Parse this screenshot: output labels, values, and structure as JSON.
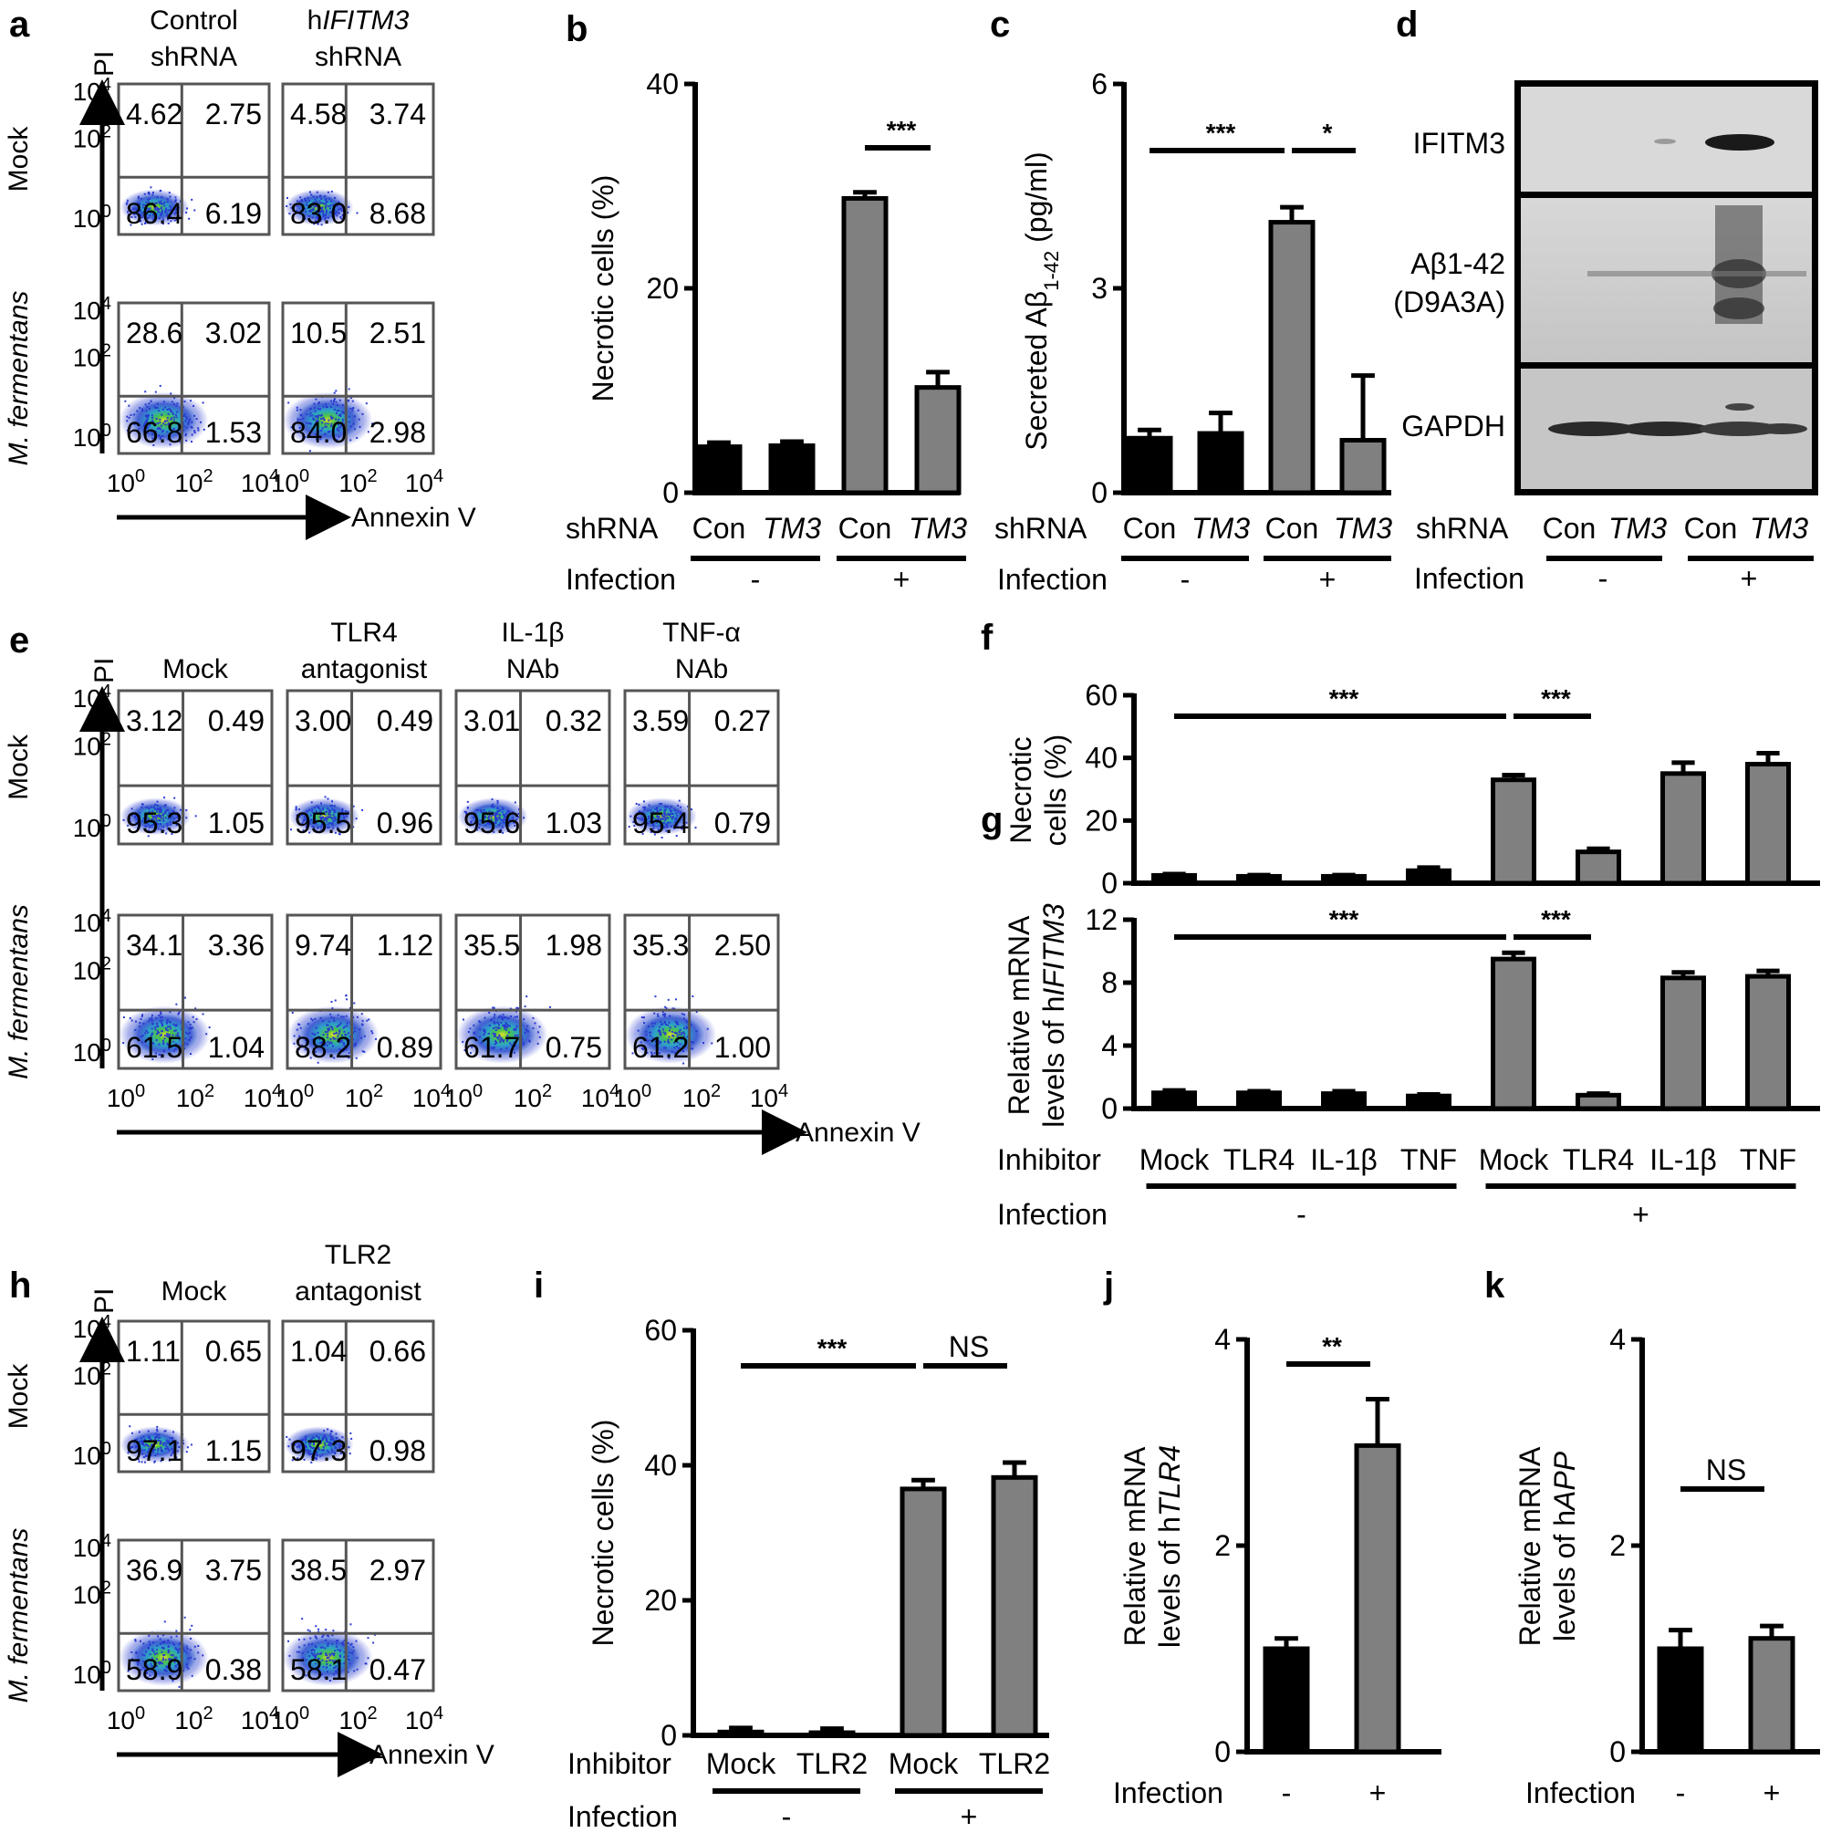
{
  "figure": {
    "panel_labels": [
      "a",
      "b",
      "c",
      "d",
      "e",
      "f",
      "g",
      "h",
      "i",
      "j",
      "k"
    ],
    "pi_label": "PI",
    "annexin_label": "Annexin V",
    "mock_label": "Mock",
    "mfer_label": "M. fermentans",
    "ticks": {
      "low": "10",
      "low_exp": "0",
      "mid": "10",
      "mid_exp": "2",
      "high": "10",
      "high_exp": "4"
    }
  },
  "panel_a": {
    "col_titles": [
      [
        "Control",
        "shRNA"
      ],
      [
        "hIFITM3",
        "shRNA"
      ]
    ],
    "col_title_italic_part": "IFITM3",
    "plots": [
      [
        "4.62",
        "2.75",
        "86.4",
        "6.19"
      ],
      [
        "4.58",
        "3.74",
        "83.0",
        "8.68"
      ],
      [
        "28.6",
        "3.02",
        "66.8",
        "1.53"
      ],
      [
        "10.5",
        "2.51",
        "84.0",
        "2.98"
      ]
    ]
  },
  "panel_e": {
    "col_titles": [
      [
        "Mock"
      ],
      [
        "TLR4",
        "antagonist"
      ],
      [
        "IL-1β",
        "NAb"
      ],
      [
        "TNF-α",
        "NAb"
      ]
    ],
    "plots": [
      [
        "3.12",
        "0.49",
        "95.3",
        "1.05"
      ],
      [
        "3.00",
        "0.49",
        "95.5",
        "0.96"
      ],
      [
        "3.01",
        "0.32",
        "95.6",
        "1.03"
      ],
      [
        "3.59",
        "0.27",
        "95.4",
        "0.79"
      ],
      [
        "34.1",
        "3.36",
        "61.5",
        "1.04"
      ],
      [
        "9.74",
        "1.12",
        "88.2",
        "0.89"
      ],
      [
        "35.5",
        "1.98",
        "61.7",
        "0.75"
      ],
      [
        "35.3",
        "2.50",
        "61.2",
        "1.00"
      ]
    ]
  },
  "panel_h": {
    "col_titles": [
      [
        "Mock"
      ],
      [
        "TLR2",
        "antagonist"
      ]
    ],
    "plots": [
      [
        "1.11",
        "0.65",
        "97.1",
        "1.15"
      ],
      [
        "1.04",
        "0.66",
        "97.3",
        "0.98"
      ],
      [
        "36.9",
        "3.75",
        "58.9",
        "0.38"
      ],
      [
        "38.5",
        "2.97",
        "58.1",
        "0.47"
      ]
    ]
  },
  "panel_d": {
    "bands": [
      "IFITM3",
      "Aβ1-42",
      "(D9A3A)",
      "GAPDH"
    ],
    "shrna_label": "shRNA",
    "lanes": [
      "Con",
      "TM3",
      "Con",
      "TM3"
    ],
    "infection_label": "Infection",
    "infection_groups": [
      "-",
      "+"
    ]
  },
  "chart_data": [
    {
      "id": "b",
      "type": "bar",
      "ylabel": "Necrotic cells (%)",
      "ylim": [
        0,
        40
      ],
      "yticks": [
        "0",
        "20",
        "40"
      ],
      "row_label": "shRNA",
      "categories": [
        "Con",
        "TM3",
        "Con",
        "TM3"
      ],
      "values": [
        4.5,
        4.6,
        28.8,
        10.3
      ],
      "errors": [
        0.4,
        0.4,
        0.6,
        1.5
      ],
      "colors": [
        "#000000",
        "#000000",
        "#808080",
        "#808080"
      ],
      "infection_label": "Infection",
      "infection_groups": [
        "-",
        "+"
      ],
      "significance": [
        {
          "text": "***",
          "from": 2,
          "to": 3
        }
      ]
    },
    {
      "id": "c",
      "type": "bar",
      "ylabel_main": "Secreted Aβ",
      "ylabel_sub": "1-42",
      "ylabel_unit": " (pg/ml)",
      "ylim": [
        0,
        6
      ],
      "yticks": [
        "0",
        "3",
        "6"
      ],
      "row_label": "shRNA",
      "categories": [
        "Con",
        "TM3",
        "Con",
        "TM3"
      ],
      "values": [
        0.8,
        0.87,
        3.97,
        0.77
      ],
      "errors": [
        0.12,
        0.3,
        0.22,
        0.95
      ],
      "colors": [
        "#000000",
        "#000000",
        "#808080",
        "#808080"
      ],
      "infection_label": "Infection",
      "infection_groups": [
        "-",
        "+"
      ],
      "significance": [
        {
          "text": "***",
          "from": 0,
          "to": 2
        },
        {
          "text": "*",
          "from": 2,
          "to": 3
        }
      ]
    },
    {
      "id": "f",
      "type": "bar",
      "ylabel": [
        "Necrotic",
        "cells (%)"
      ],
      "ylim": [
        0,
        60
      ],
      "yticks": [
        "0",
        "20",
        "40",
        "60"
      ],
      "categories": [
        "Mock",
        "TLR4",
        "IL-1β",
        "TNF",
        "Mock",
        "TLR4",
        "IL-1β",
        "TNF"
      ],
      "values": [
        2.5,
        2.2,
        2.2,
        4.0,
        33.0,
        10.0,
        35.0,
        38.0
      ],
      "errors": [
        0.4,
        0.4,
        0.4,
        1.0,
        1.5,
        1.0,
        3.5,
        3.5
      ],
      "colors": [
        "#000000",
        "#000000",
        "#000000",
        "#000000",
        "#808080",
        "#808080",
        "#808080",
        "#808080"
      ],
      "significance": [
        {
          "text": "***",
          "from": 0,
          "to": 4
        },
        {
          "text": "***",
          "from": 4,
          "to": 5
        }
      ]
    },
    {
      "id": "g",
      "type": "bar",
      "ylabel": [
        "Relative mRNA",
        "levels of h",
        "IFITM3"
      ],
      "ylim": [
        0,
        12
      ],
      "yticks": [
        "0",
        "4",
        "8",
        "12"
      ],
      "row_label": "Inhibitor",
      "categories": [
        "Mock",
        "TLR4",
        "IL-1β",
        "TNF",
        "Mock",
        "TLR4",
        "IL-1β",
        "TNF"
      ],
      "values": [
        1.0,
        1.0,
        0.95,
        0.8,
        9.5,
        0.85,
        8.3,
        8.4
      ],
      "errors": [
        0.15,
        0.1,
        0.15,
        0.1,
        0.4,
        0.1,
        0.35,
        0.35
      ],
      "colors": [
        "#000000",
        "#000000",
        "#000000",
        "#000000",
        "#808080",
        "#808080",
        "#808080",
        "#808080"
      ],
      "infection_label": "Infection",
      "infection_groups": [
        "-",
        "+"
      ],
      "significance": [
        {
          "text": "***",
          "from": 0,
          "to": 4
        },
        {
          "text": "***",
          "from": 4,
          "to": 5
        }
      ]
    },
    {
      "id": "i",
      "type": "bar",
      "ylabel": "Necrotic cells (%)",
      "ylim": [
        0,
        60
      ],
      "yticks": [
        "0",
        "20",
        "40",
        "60"
      ],
      "row_label": "Inhibitor",
      "categories": [
        "Mock",
        "TLR2",
        "Mock",
        "TLR2"
      ],
      "values": [
        0.5,
        0.4,
        36.5,
        38.2
      ],
      "errors": [
        0.6,
        0.6,
        1.3,
        2.2
      ],
      "colors": [
        "#000000",
        "#000000",
        "#808080",
        "#808080"
      ],
      "infection_label": "Infection",
      "infection_groups": [
        "-",
        "+"
      ],
      "significance": [
        {
          "text": "***",
          "from": 0,
          "to": 2
        },
        {
          "text": "NS",
          "from": 2,
          "to": 3
        }
      ]
    },
    {
      "id": "j",
      "type": "bar",
      "ylabel": [
        "Relative mRNA",
        "levels of h",
        "TLR4"
      ],
      "ylim": [
        0,
        4
      ],
      "yticks": [
        "0",
        "2",
        "4"
      ],
      "row_label": "Infection",
      "categories": [
        "-",
        "+"
      ],
      "values": [
        1.0,
        2.97
      ],
      "errors": [
        0.1,
        0.45
      ],
      "colors": [
        "#000000",
        "#808080"
      ],
      "significance": [
        {
          "text": "**",
          "from": 0,
          "to": 1
        }
      ]
    },
    {
      "id": "k",
      "type": "bar",
      "ylabel": [
        "Relative mRNA",
        "levels of h",
        "APP"
      ],
      "ylim": [
        0,
        4
      ],
      "yticks": [
        "0",
        "2",
        "4"
      ],
      "row_label": "Infection",
      "categories": [
        "-",
        "+"
      ],
      "values": [
        1.0,
        1.1
      ],
      "errors": [
        0.18,
        0.12
      ],
      "colors": [
        "#000000",
        "#808080"
      ],
      "significance": [
        {
          "text": "NS",
          "from": 0,
          "to": 1
        }
      ]
    }
  ]
}
